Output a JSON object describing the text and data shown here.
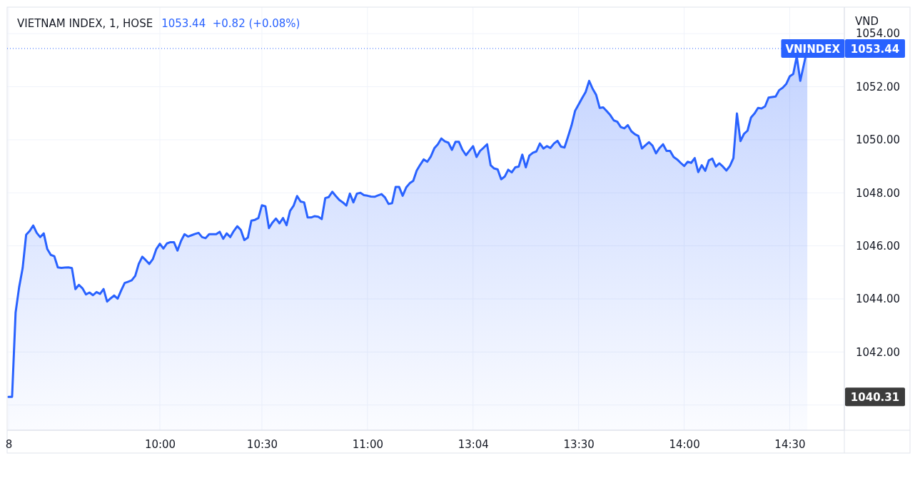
{
  "chart_data": {
    "type": "area",
    "title": "VIETNAM INDEX, 1, HOSE",
    "subtitle": "1053.44  +0.82 (+0.08%)",
    "ylabel": "VND",
    "categories": [
      "8",
      null,
      null,
      null,
      null,
      null,
      null,
      null,
      null,
      null,
      null,
      null,
      null,
      null,
      null,
      null,
      null,
      null,
      null,
      null,
      null,
      null,
      null,
      null,
      null,
      null,
      null,
      null,
      null,
      null,
      null,
      null,
      null,
      null,
      null,
      null,
      null,
      null,
      null,
      null,
      null,
      null,
      null,
      "10:00",
      null,
      null,
      null,
      null,
      null,
      null,
      null,
      null,
      null,
      null,
      null,
      null,
      null,
      null,
      null,
      null,
      null,
      null,
      null,
      null,
      null,
      null,
      null,
      null,
      null,
      null,
      null,
      null,
      "10:30",
      null,
      null,
      null,
      null,
      null,
      null,
      null,
      null,
      null,
      null,
      null,
      null,
      null,
      null,
      null,
      null,
      null,
      null,
      null,
      null,
      null,
      null,
      null,
      null,
      null,
      null,
      null,
      null,
      null,
      "11:00",
      null,
      null,
      null,
      null,
      null,
      null,
      null,
      null,
      null,
      null,
      null,
      null,
      null,
      null,
      null,
      null,
      null,
      null,
      null,
      null,
      null,
      null,
      null,
      null,
      null,
      null,
      null,
      null,
      null,
      "13:04",
      null,
      null,
      null,
      null,
      null,
      null,
      null,
      null,
      null,
      null,
      null,
      null,
      null,
      null,
      null,
      null,
      null,
      null,
      null,
      null,
      null,
      null,
      null,
      null,
      null,
      null,
      null,
      null,
      null,
      "13:30",
      null,
      null,
      null,
      null,
      null,
      null,
      null,
      null,
      null,
      null,
      null,
      null,
      null,
      null,
      null,
      null,
      null,
      null,
      null,
      null,
      null,
      null,
      null,
      null,
      null,
      null,
      null,
      null,
      null,
      "14:00",
      null,
      null,
      null,
      null,
      null,
      null,
      null,
      null,
      null,
      null,
      null,
      null,
      null,
      null,
      null,
      null,
      null,
      null,
      null,
      null,
      null,
      null,
      null,
      null,
      null,
      null,
      null,
      null,
      null,
      "14:30",
      null,
      null,
      null,
      null,
      null
    ],
    "ylim": [
      1039.05,
      1055.0
    ],
    "yticks": [
      {
        "value": 1040,
        "label": null
      },
      {
        "value": 1042,
        "label": "1042.00"
      },
      {
        "value": 1044,
        "label": "1044.00"
      },
      {
        "value": 1046,
        "label": "1046.00"
      },
      {
        "value": 1048,
        "label": "1048.00"
      },
      {
        "value": 1050,
        "label": "1050.00"
      },
      {
        "value": 1052,
        "label": "1052.00"
      },
      {
        "value": 1054,
        "label": "1054.00"
      }
    ],
    "grid": true,
    "marker": "none",
    "line_style": "solid",
    "ref_lines": [
      {
        "axis": "y",
        "value": 1053.44,
        "label": "VNINDEX",
        "color": "#2962ff",
        "line_style": "dotted"
      }
    ],
    "annotations": [
      "1053.44",
      "1040.31"
    ],
    "series": [
      {
        "color": "#2962ff",
        "values": [
          1040.31,
          1040.31,
          1043.49,
          1044.44,
          1045.16,
          1046.42,
          1046.56,
          1046.77,
          1046.49,
          1046.33,
          1046.47,
          1045.88,
          1045.66,
          1045.61,
          1045.19,
          1045.17,
          1045.18,
          1045.19,
          1045.16,
          1044.37,
          1044.53,
          1044.4,
          1044.17,
          1044.24,
          1044.14,
          1044.26,
          1044.19,
          1044.37,
          1043.9,
          1044.02,
          1044.13,
          1044.01,
          1044.32,
          1044.6,
          1044.65,
          1044.7,
          1044.87,
          1045.32,
          1045.59,
          1045.46,
          1045.32,
          1045.5,
          1045.88,
          1046.08,
          1045.9,
          1046.09,
          1046.14,
          1046.14,
          1045.82,
          1046.18,
          1046.44,
          1046.35,
          1046.4,
          1046.45,
          1046.49,
          1046.33,
          1046.29,
          1046.44,
          1046.44,
          1046.44,
          1046.53,
          1046.27,
          1046.47,
          1046.33,
          1046.56,
          1046.74,
          1046.6,
          1046.22,
          1046.31,
          1046.95,
          1046.98,
          1047.05,
          1047.53,
          1047.49,
          1046.67,
          1046.88,
          1047.03,
          1046.85,
          1047.05,
          1046.78,
          1047.32,
          1047.51,
          1047.88,
          1047.67,
          1047.64,
          1047.07,
          1047.07,
          1047.12,
          1047.1,
          1047.01,
          1047.8,
          1047.84,
          1048.04,
          1047.88,
          1047.73,
          1047.64,
          1047.52,
          1047.97,
          1047.64,
          1047.97,
          1048.0,
          1047.91,
          1047.89,
          1047.86,
          1047.85,
          1047.9,
          1047.95,
          1047.82,
          1047.58,
          1047.61,
          1048.22,
          1048.22,
          1047.89,
          1048.2,
          1048.36,
          1048.45,
          1048.84,
          1049.06,
          1049.26,
          1049.17,
          1049.37,
          1049.68,
          1049.83,
          1050.05,
          1049.94,
          1049.89,
          1049.62,
          1049.92,
          1049.92,
          1049.62,
          1049.42,
          1049.59,
          1049.76,
          1049.35,
          1049.58,
          1049.7,
          1049.83,
          1049.04,
          1048.92,
          1048.88,
          1048.51,
          1048.61,
          1048.87,
          1048.77,
          1048.96,
          1048.99,
          1049.44,
          1048.96,
          1049.4,
          1049.51,
          1049.56,
          1049.86,
          1049.67,
          1049.76,
          1049.69,
          1049.86,
          1049.96,
          1049.74,
          1049.71,
          1050.12,
          1050.54,
          1051.09,
          1051.33,
          1051.57,
          1051.8,
          1052.22,
          1051.92,
          1051.69,
          1051.2,
          1051.22,
          1051.08,
          1050.93,
          1050.73,
          1050.68,
          1050.48,
          1050.43,
          1050.55,
          1050.32,
          1050.21,
          1050.14,
          1049.67,
          1049.79,
          1049.91,
          1049.78,
          1049.49,
          1049.69,
          1049.83,
          1049.58,
          1049.58,
          1049.35,
          1049.26,
          1049.13,
          1049.01,
          1049.17,
          1049.13,
          1049.31,
          1048.78,
          1049.04,
          1048.83,
          1049.22,
          1049.29,
          1048.99,
          1049.11,
          1048.99,
          1048.84,
          1049.01,
          1049.31,
          1050.99,
          1049.95,
          1050.22,
          1050.34,
          1050.84,
          1050.99,
          1051.2,
          1051.18,
          1051.26,
          1051.59,
          1051.61,
          1051.63,
          1051.87,
          1051.96,
          1052.1,
          1052.39,
          1052.48,
          1053.14,
          1052.22,
          1052.82,
          1053.44
        ]
      }
    ]
  }
}
